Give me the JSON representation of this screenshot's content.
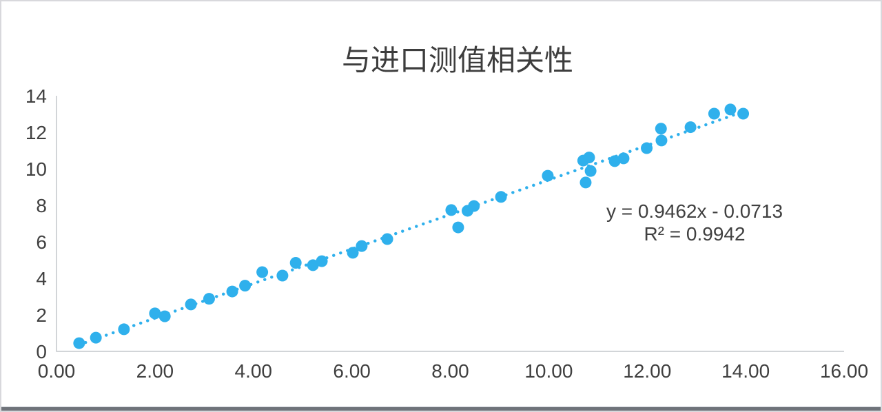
{
  "window": {
    "background": "#ffffff",
    "border_color": "#d8d8dc",
    "bottom_bar_color": "#6f737a"
  },
  "colors": {
    "marker": "#2FB0EC",
    "trendline": "#2FB0EC",
    "axis_line": "#c4c7cb",
    "text": "#404040",
    "title_text": "#3d3d3d"
  },
  "chart_data": {
    "type": "scatter",
    "title": "与进口测值相关性",
    "xlabel": "",
    "ylabel": "",
    "xlim": [
      0,
      16
    ],
    "ylim": [
      0,
      14
    ],
    "x_ticks": [
      "0.00",
      "2.00",
      "4.00",
      "6.00",
      "8.00",
      "10.00",
      "12.00",
      "14.00",
      "16.00"
    ],
    "y_ticks": [
      "0",
      "2",
      "4",
      "6",
      "8",
      "10",
      "12",
      "14"
    ],
    "gridlines": false,
    "legend": false,
    "points": [
      [
        0.46,
        0.45
      ],
      [
        0.8,
        0.75
      ],
      [
        1.37,
        1.21
      ],
      [
        2.0,
        2.08
      ],
      [
        2.2,
        1.92
      ],
      [
        2.73,
        2.57
      ],
      [
        3.1,
        2.88
      ],
      [
        3.57,
        3.28
      ],
      [
        3.83,
        3.6
      ],
      [
        4.18,
        4.34
      ],
      [
        4.59,
        4.15
      ],
      [
        4.86,
        4.85
      ],
      [
        5.21,
        4.72
      ],
      [
        5.39,
        4.94
      ],
      [
        6.02,
        5.4
      ],
      [
        6.2,
        5.77
      ],
      [
        6.72,
        6.15
      ],
      [
        8.02,
        7.74
      ],
      [
        8.16,
        6.79
      ],
      [
        8.35,
        7.7
      ],
      [
        8.48,
        7.96
      ],
      [
        9.03,
        8.46
      ],
      [
        9.98,
        9.62
      ],
      [
        10.7,
        10.45
      ],
      [
        10.82,
        10.62
      ],
      [
        10.85,
        9.88
      ],
      [
        10.75,
        9.25
      ],
      [
        11.34,
        10.42
      ],
      [
        11.52,
        10.57
      ],
      [
        11.99,
        11.13
      ],
      [
        12.28,
        12.2
      ],
      [
        12.29,
        11.55
      ],
      [
        12.88,
        12.28
      ],
      [
        13.36,
        13.02
      ],
      [
        13.69,
        13.25
      ],
      [
        13.95,
        13.02
      ]
    ],
    "trendline": {
      "style": "dotted",
      "equation": "y = 0.9462x - 0.0713",
      "r_squared": "R² = 0.9942",
      "slope": 0.9462,
      "intercept": -0.0713,
      "x_start": 0.45,
      "x_end": 13.95
    }
  }
}
